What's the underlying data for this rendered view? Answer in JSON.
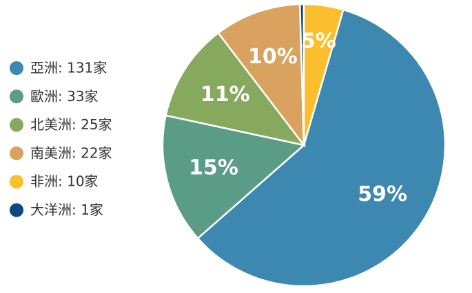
{
  "chart_data": {
    "type": "pie",
    "categories": [
      "亞洲: 131家",
      "歐洲: 33家",
      "北美洲: 25家",
      "南美洲: 22家",
      "非洲: 10家",
      "大洋洲: 1家"
    ],
    "values": [
      131,
      33,
      25,
      22,
      10,
      1
    ],
    "percent_labels": [
      "59%",
      "15%",
      "11%",
      "10%",
      "5%",
      null
    ],
    "colors": [
      "#3d88b1",
      "#5b9c86",
      "#87a95d",
      "#d9a25f",
      "#fbbf2d",
      "#0d4680"
    ]
  }
}
